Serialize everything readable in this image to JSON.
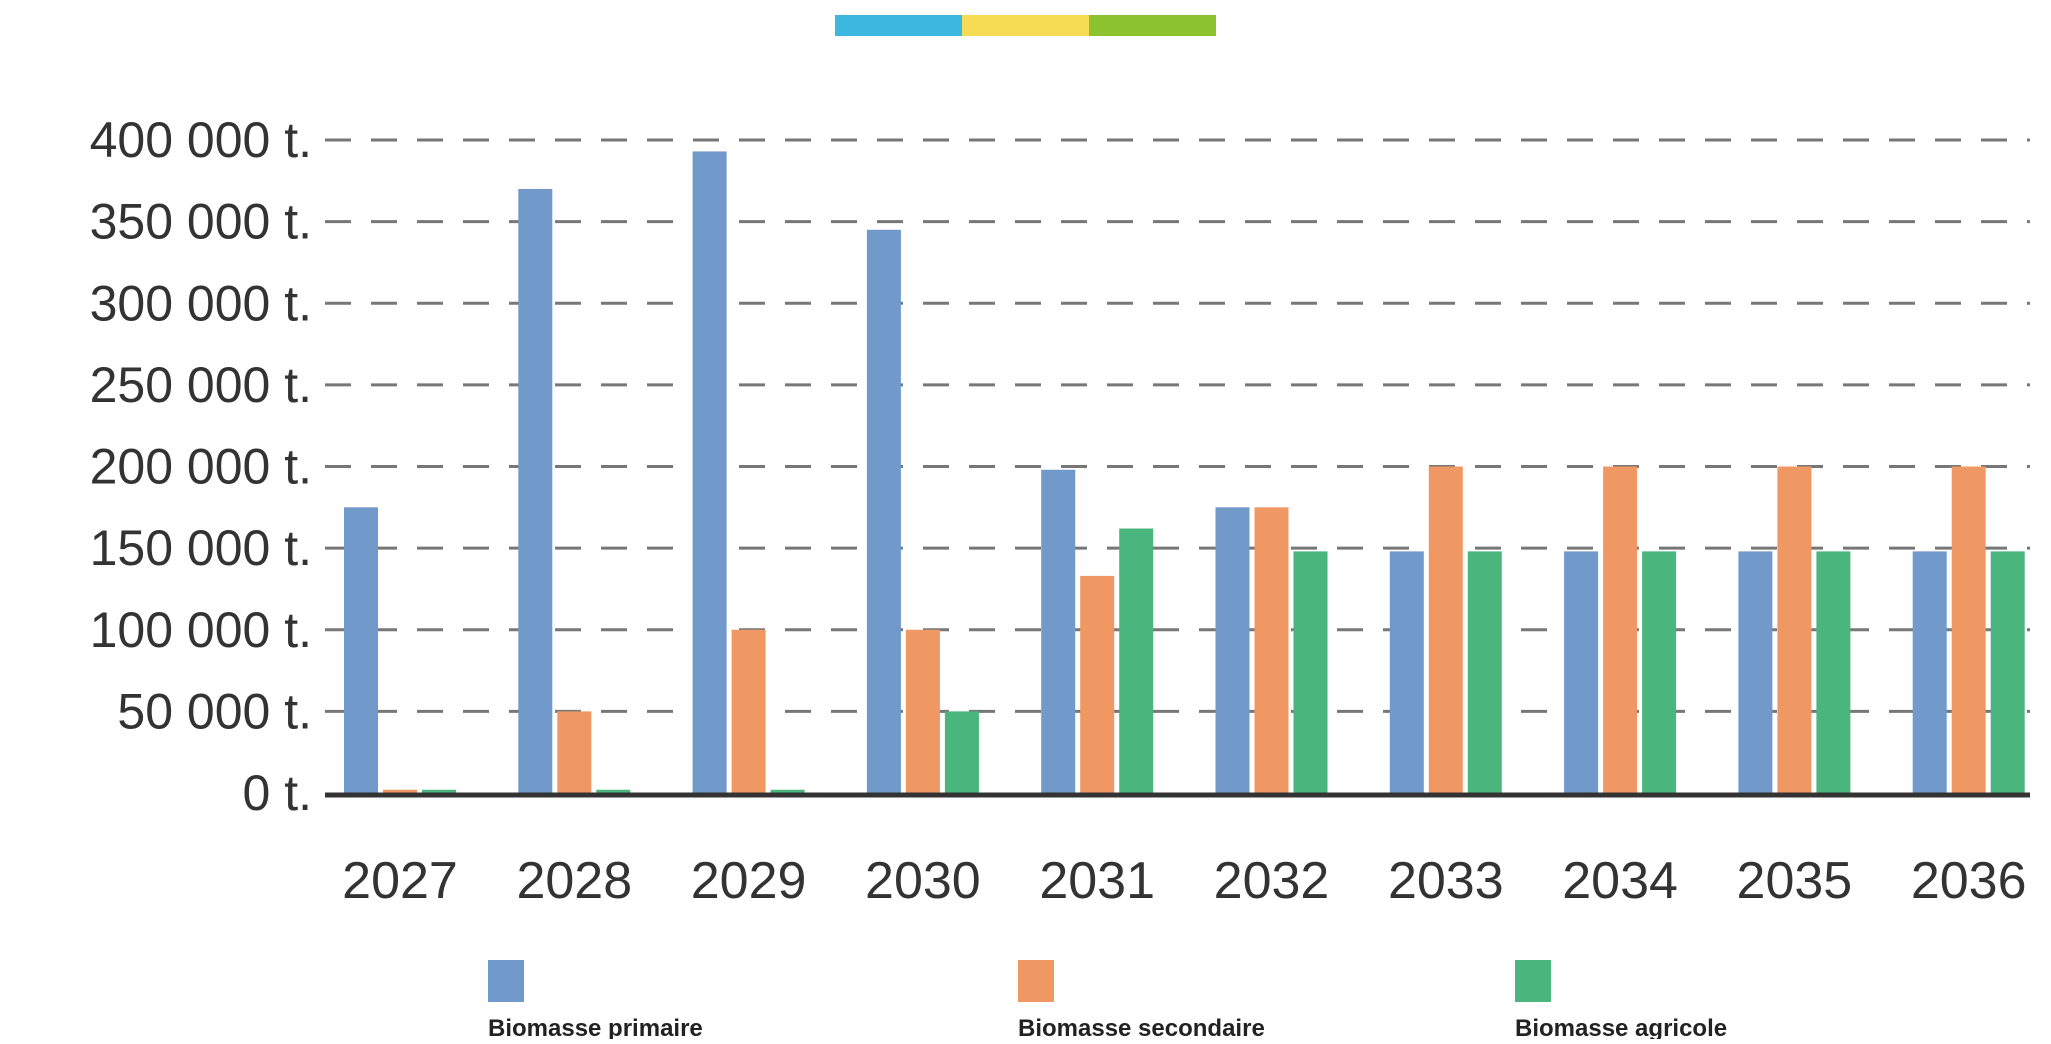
{
  "colors": {
    "topbar": [
      "#3bb7e0",
      "#f6dc55",
      "#8cc230"
    ],
    "grid": "#777777",
    "axis": "#333333"
  },
  "chart_data": {
    "type": "bar",
    "categories": [
      "2027",
      "2028",
      "2029",
      "2030",
      "2031",
      "2032",
      "2033",
      "2034",
      "2035",
      "2036"
    ],
    "series": [
      {
        "name": "Biomasse primaire",
        "color": "#7199c9",
        "values": [
          175000,
          370000,
          393000,
          345000,
          198000,
          175000,
          148000,
          148000,
          148000,
          148000
        ]
      },
      {
        "name": "Biomasse secondaire",
        "color": "#f09863",
        "values": [
          2000,
          50000,
          100000,
          100000,
          133000,
          175000,
          200000,
          200000,
          200000,
          200000
        ]
      },
      {
        "name": "Biomasse agricole",
        "color": "#4ab57c",
        "values": [
          2000,
          2000,
          2000,
          50000,
          162000,
          148000,
          148000,
          148000,
          148000,
          148000
        ]
      }
    ],
    "yticks": [
      "0 t.",
      "50 000 t.",
      "100 000 t.",
      "150 000 t.",
      "200 000 t.",
      "250 000 t.",
      "300 000 t.",
      "350 000 t.",
      "400 000 t."
    ],
    "ylim": [
      0,
      400000
    ],
    "ystep": 50000,
    "grid": true,
    "legend_position": "bottom"
  }
}
